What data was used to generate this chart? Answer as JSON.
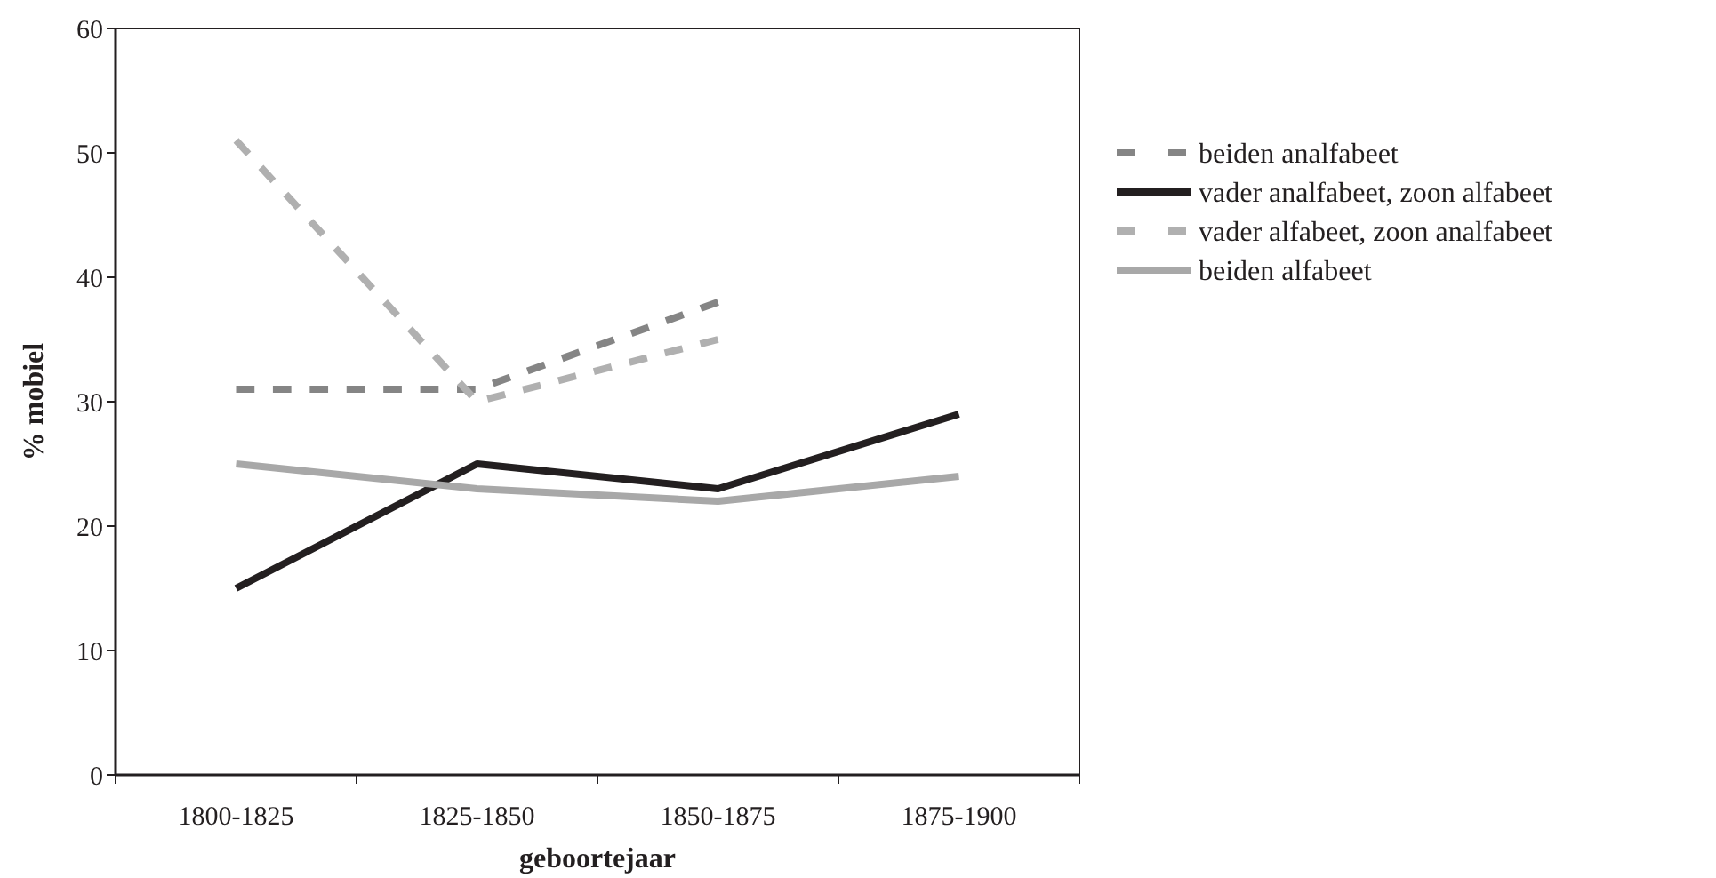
{
  "chart_data": {
    "type": "line",
    "xlabel": "geboortejaar",
    "ylabel": "% mobiel",
    "categories": [
      "1800-1825",
      "1825-1850",
      "1850-1875",
      "1875-1900"
    ],
    "ylim": [
      0,
      60
    ],
    "yticks": [
      0,
      10,
      20,
      30,
      40,
      50,
      60
    ],
    "legend": "right",
    "marker": "none",
    "series": [
      {
        "name": "beiden analfabeet",
        "color": "#858585",
        "line_style": "dashed",
        "values": [
          31,
          31,
          38,
          null
        ]
      },
      {
        "name": "vader analfabeet, zoon alfabeet",
        "color": "#231f20",
        "line_style": "solid",
        "values": [
          15,
          25,
          23,
          29
        ]
      },
      {
        "name": "vader alfabeet, zoon analfabeet",
        "color": "#b0b0b0",
        "line_style": "dashed",
        "values": [
          51,
          30,
          35,
          null
        ]
      },
      {
        "name": "beiden alfabeet",
        "color": "#a8a8a8",
        "line_style": "solid",
        "values": [
          25,
          23,
          22,
          24
        ]
      }
    ]
  }
}
